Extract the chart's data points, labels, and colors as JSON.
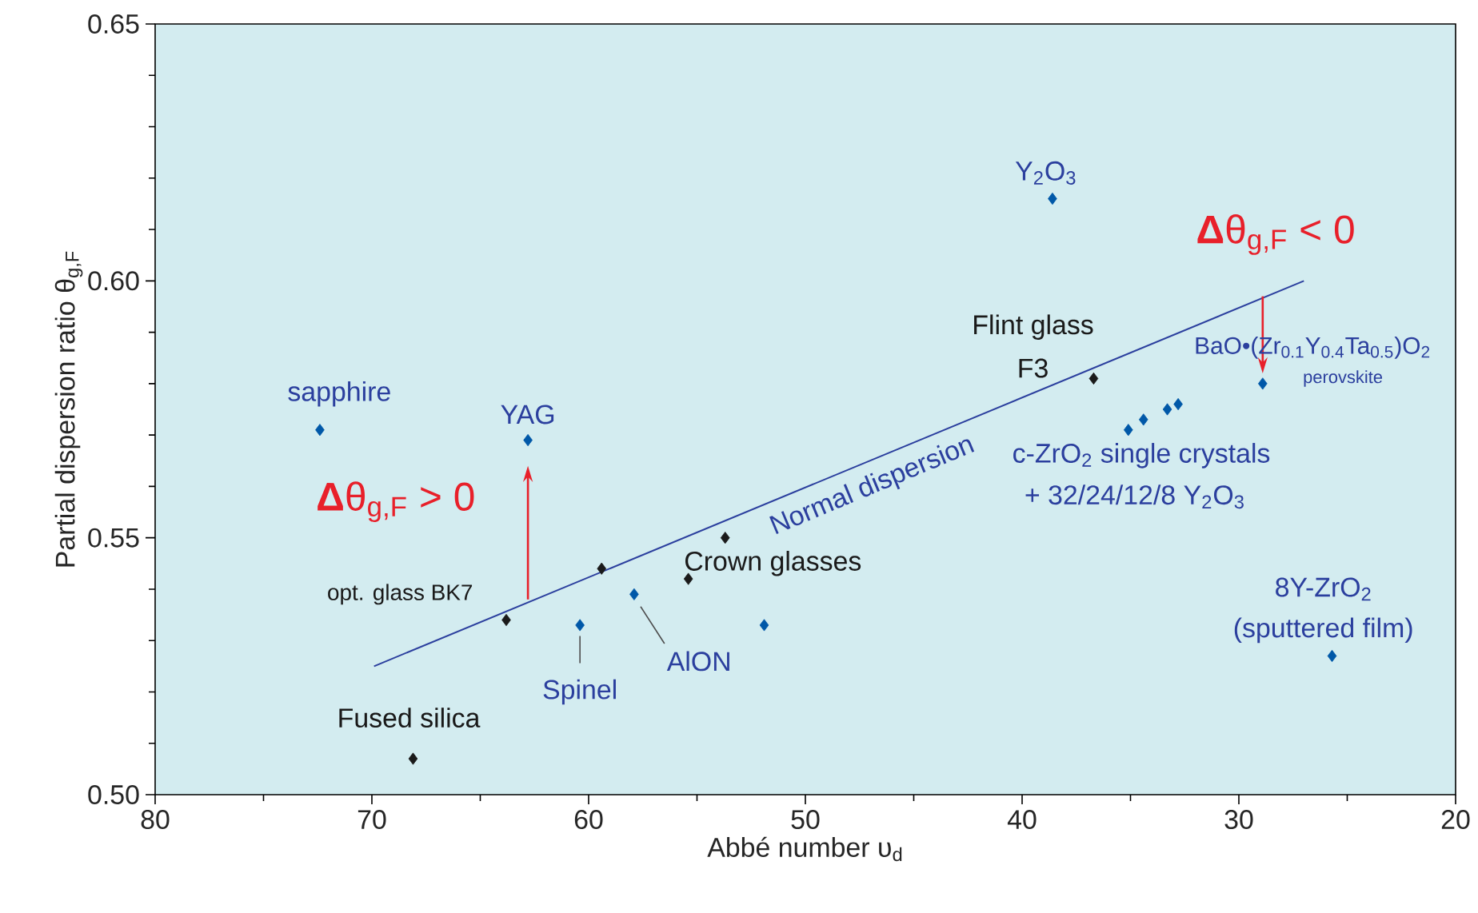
{
  "chart_data": {
    "type": "scatter",
    "xlabel": "Abbé number υ$_{d}$",
    "ylabel": "Partial dispersion ratio θ$_{g,F}$",
    "xlim": [
      80,
      20
    ],
    "xticks": [
      80,
      70,
      60,
      50,
      40,
      30,
      20
    ],
    "ylim": [
      0.5,
      0.65
    ],
    "yticks": [
      {
        "value": 0.5,
        "label": "0.50"
      },
      {
        "value": 0.55,
        "label": "0.55"
      },
      {
        "value": 0.6,
        "label": "0.60"
      },
      {
        "value": 0.65,
        "label": "0.65"
      }
    ],
    "marker": "diamond",
    "series": [
      {
        "color": "#1a1a1a",
        "x": [
          68.1,
          63.8,
          59.4,
          55.4,
          53.7,
          36.7
        ],
        "values": [
          0.507,
          0.534,
          0.544,
          0.542,
          0.55,
          0.581
        ]
      },
      {
        "color": "#0058a8",
        "x": [
          72.4,
          62.8,
          60.4,
          57.9,
          51.9,
          38.6,
          35.1,
          34.4,
          33.3,
          32.8,
          28.9,
          25.7
        ],
        "values": [
          0.571,
          0.569,
          0.533,
          0.539,
          0.533,
          0.616,
          0.571,
          0.573,
          0.575,
          0.576,
          0.58,
          0.527
        ]
      },
      {
        "type": "line",
        "marker": "none",
        "color": "#2b3f9e",
        "x": [
          69.9,
          27.0
        ],
        "values": [
          0.525,
          0.6
        ]
      }
    ],
    "annotations": [
      "sapphire",
      "YAG",
      "**Δ**θ$_{g,F}$ > 0",
      "opt. glass BK7",
      "Fused silica",
      "Spinel",
      "AlON",
      "Crown glasses",
      "Normal dispersion",
      "Flint glass",
      "F3",
      "Y$_{2}$O$_{3}$",
      "**Δ**θ$_{g,F}$ < 0",
      "BaO•(Zr$_{0.1}$Y$_{0.4}$Ta$_{0.5}$)O$_{2}$",
      "perovskite",
      "c-ZrO$_{2}$ single crystals",
      "+ 32/24/12/8 Y$_{2}$O$_{3}$",
      "8Y-ZrO$_{2}$",
      "(sputtered film)"
    ]
  }
}
